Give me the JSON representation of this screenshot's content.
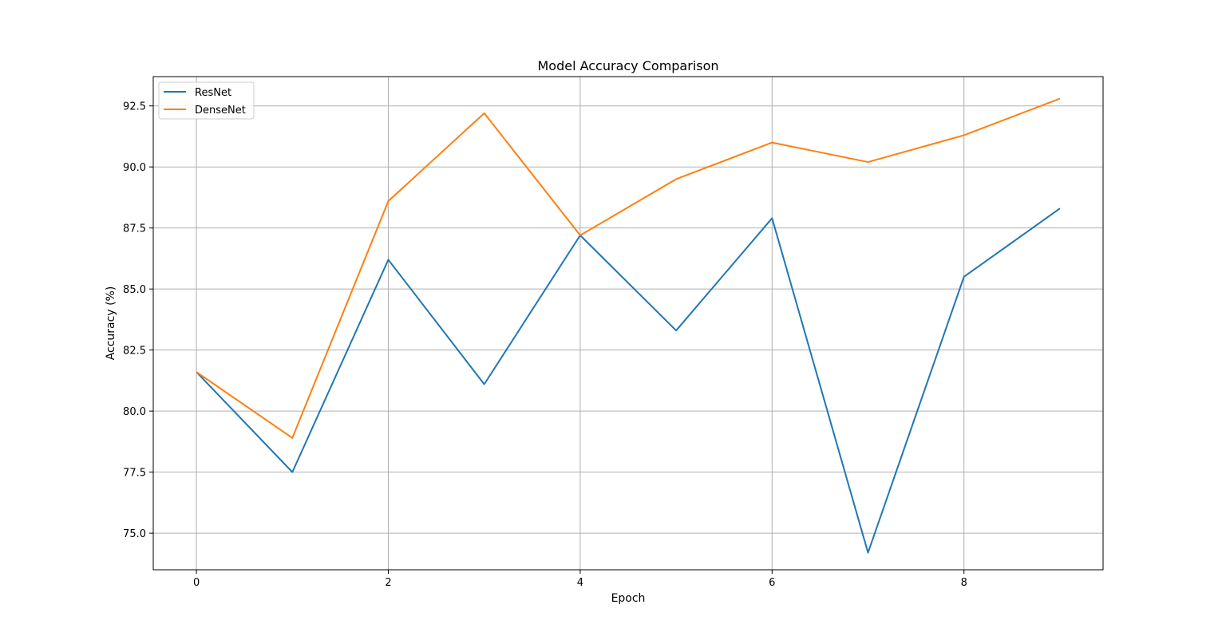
{
  "chart_data": {
    "type": "line",
    "title": "Model Accuracy Comparison",
    "xlabel": "Epoch",
    "ylabel": "Accuracy (%)",
    "x": [
      0,
      1,
      2,
      3,
      4,
      5,
      6,
      7,
      8,
      9
    ],
    "xlim": [
      -0.45,
      9.45
    ],
    "ylim": [
      73.5,
      93.7
    ],
    "xticks": [
      0,
      2,
      4,
      6,
      8
    ],
    "yticks": [
      75.0,
      77.5,
      80.0,
      82.5,
      85.0,
      87.5,
      90.0,
      92.5
    ],
    "xtick_labels": [
      "0",
      "2",
      "4",
      "6",
      "8"
    ],
    "ytick_labels": [
      "75.0",
      "77.5",
      "80.0",
      "82.5",
      "85.0",
      "87.5",
      "90.0",
      "92.5"
    ],
    "grid": true,
    "legend_position": "top-left",
    "series": [
      {
        "name": "ResNet",
        "color": "#1f77b4",
        "values": [
          81.6,
          77.5,
          86.2,
          81.1,
          87.2,
          83.3,
          87.9,
          74.2,
          85.5,
          88.3
        ]
      },
      {
        "name": "DenseNet",
        "color": "#ff7f0e",
        "values": [
          81.6,
          78.9,
          88.6,
          92.2,
          87.2,
          89.5,
          91.0,
          90.2,
          91.3,
          92.8
        ]
      }
    ]
  }
}
